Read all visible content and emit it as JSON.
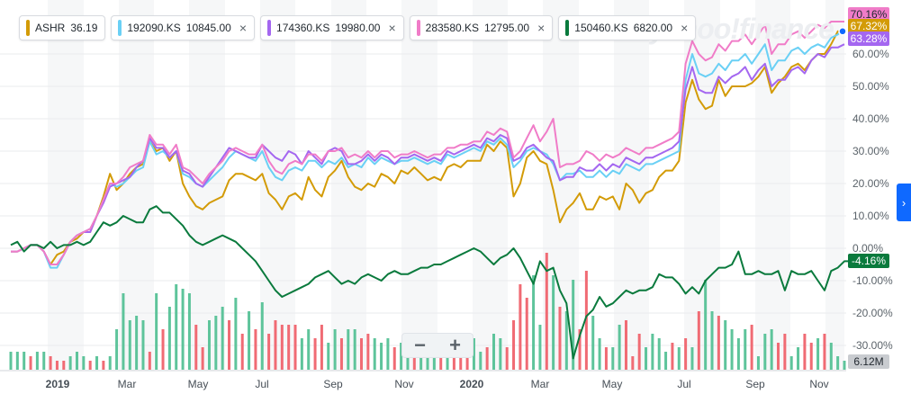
{
  "legend": [
    {
      "symbol": "ASHR",
      "value": "36.19",
      "color": "#d39b07",
      "closable": false
    },
    {
      "symbol": "192090.KS",
      "value": "10845.00",
      "color": "#6ad0f5",
      "closable": true
    },
    {
      "symbol": "174360.KS",
      "value": "19980.00",
      "color": "#a467f0",
      "closable": true
    },
    {
      "symbol": "283580.KS",
      "value": "12795.00",
      "color": "#f07cc8",
      "closable": true
    },
    {
      "symbol": "150460.KS",
      "value": "6820.00",
      "color": "#0a7a3d",
      "closable": true
    }
  ],
  "close_glyph": "×",
  "watermark": "yahoo!finance",
  "zoom": {
    "minus": "−",
    "plus": "+"
  },
  "side_arrow": "›",
  "chart_data": {
    "type": "line",
    "title": "",
    "x_axis_labels": [
      "2019",
      "Mar",
      "May",
      "Jul",
      "Sep",
      "Nov",
      "2020",
      "Mar",
      "May",
      "Jul",
      "Sep",
      "Nov"
    ],
    "y_axis": {
      "min": -35,
      "max": 75,
      "ticks": [
        60,
        50,
        40,
        30,
        20,
        10,
        0,
        -10,
        -20,
        -30
      ],
      "unit": "%"
    },
    "y_tick_labels": [
      "60.00%",
      "50.00%",
      "40.00%",
      "30.00%",
      "20.00%",
      "10.00%",
      "0.00%",
      "-10.00%",
      "-20.00%",
      "-30.00%"
    ],
    "series": [
      {
        "name": "ASHR",
        "color": "#d39b07",
        "last_label": "67.32%",
        "values": [
          -1,
          -1,
          0,
          1,
          1,
          -1,
          -5,
          -2,
          -1,
          2,
          3,
          5,
          5,
          10,
          16,
          23,
          18,
          20,
          23,
          25,
          26,
          33,
          30,
          31,
          27,
          30,
          20,
          16,
          13,
          12,
          14,
          15,
          16,
          21,
          23,
          23,
          22,
          21,
          23,
          17,
          15,
          12,
          16,
          17,
          15,
          22,
          18,
          16,
          22,
          24,
          27,
          22,
          19,
          18,
          20,
          19,
          23,
          22,
          20,
          24,
          23,
          25,
          23,
          21,
          22,
          21,
          25,
          26,
          25,
          27,
          27,
          27,
          32,
          30,
          33,
          31,
          16,
          20,
          28,
          30,
          27,
          26,
          18,
          8,
          12,
          14,
          17,
          12,
          12,
          16,
          15,
          16,
          12,
          20,
          18,
          14,
          17,
          18,
          22,
          24,
          24,
          27,
          45,
          52,
          46,
          43,
          44,
          52,
          47,
          50,
          50,
          50,
          51,
          53,
          56,
          48,
          51,
          53,
          56,
          57,
          55,
          58,
          60,
          60,
          63,
          67,
          67
        ]
      },
      {
        "name": "192090.KS",
        "color": "#6ad0f5",
        "last_label": "",
        "values": [
          -1,
          -1,
          0,
          1,
          1,
          -1,
          -6,
          -6,
          -2,
          2,
          4,
          5,
          6,
          10,
          15,
          20,
          19,
          20,
          22,
          24,
          25,
          33,
          29,
          30,
          28,
          30,
          23,
          22,
          20,
          19,
          21,
          23,
          25,
          28,
          30,
          29,
          28,
          27,
          30,
          25,
          22,
          21,
          24,
          25,
          24,
          27,
          27,
          25,
          27,
          26,
          28,
          25,
          26,
          25,
          28,
          26,
          28,
          27,
          26,
          27,
          27,
          28,
          27,
          26,
          27,
          26,
          29,
          28,
          29,
          30,
          31,
          30,
          33,
          32,
          34,
          32,
          25,
          27,
          30,
          31,
          30,
          29,
          26,
          21,
          23,
          23,
          24,
          22,
          22,
          24,
          22,
          24,
          23,
          26,
          25,
          24,
          26,
          26,
          27,
          28,
          29,
          30,
          52,
          60,
          54,
          53,
          54,
          57,
          55,
          58,
          58,
          60,
          57,
          60,
          63,
          55,
          58,
          58,
          61,
          62,
          60,
          62,
          63,
          62,
          65,
          66,
          68
        ]
      },
      {
        "name": "174360.KS",
        "color": "#a467f0",
        "last_label": "63.28%",
        "values": [
          -1,
          -1,
          0,
          1,
          1,
          -1,
          -5,
          -5,
          -2,
          2,
          4,
          5,
          5,
          10,
          14,
          19,
          20,
          21,
          22,
          25,
          27,
          34,
          31,
          31,
          28,
          30,
          24,
          23,
          20,
          19,
          22,
          25,
          28,
          31,
          30,
          29,
          28,
          28,
          32,
          30,
          28,
          27,
          30,
          29,
          26,
          30,
          28,
          26,
          30,
          31,
          30,
          26,
          26,
          27,
          29,
          27,
          29,
          28,
          26,
          28,
          28,
          29,
          28,
          27,
          28,
          27,
          30,
          29,
          30,
          31,
          32,
          31,
          34,
          33,
          35,
          34,
          27,
          28,
          31,
          32,
          30,
          28,
          27,
          21,
          22,
          22,
          25,
          24,
          24,
          26,
          24,
          26,
          25,
          28,
          27,
          26,
          28,
          28,
          29,
          30,
          31,
          33,
          49,
          56,
          49,
          48,
          48,
          53,
          51,
          53,
          54,
          56,
          52,
          55,
          57,
          50,
          52,
          52,
          55,
          56,
          54,
          58,
          60,
          59,
          62,
          62,
          63
        ]
      },
      {
        "name": "283580.KS",
        "color": "#f07cc8",
        "last_label": "70.16%",
        "values": [
          -1,
          -1,
          0,
          1,
          1,
          -1,
          -5,
          -5,
          -2,
          2,
          4,
          5,
          6,
          10,
          15,
          20,
          20,
          22,
          25,
          26,
          27,
          35,
          32,
          32,
          29,
          32,
          25,
          24,
          22,
          20,
          23,
          25,
          27,
          30,
          31,
          30,
          29,
          29,
          32,
          27,
          24,
          23,
          26,
          27,
          26,
          29,
          29,
          27,
          30,
          30,
          31,
          28,
          29,
          28,
          30,
          28,
          30,
          30,
          28,
          29,
          29,
          30,
          29,
          28,
          29,
          29,
          31,
          31,
          32,
          32,
          33,
          33,
          36,
          35,
          37,
          36,
          28,
          30,
          34,
          38,
          33,
          36,
          40,
          25,
          26,
          26,
          27,
          30,
          29,
          27,
          29,
          28,
          29,
          31,
          30,
          29,
          31,
          31,
          32,
          33,
          34,
          36,
          57,
          64,
          60,
          58,
          59,
          63,
          61,
          64,
          64,
          66,
          63,
          66,
          69,
          60,
          63,
          63,
          66,
          67,
          65,
          67,
          69,
          68,
          70,
          70,
          70
        ]
      },
      {
        "name": "150460.KS",
        "color": "#0a7a3d",
        "last_label": "-4.16%",
        "values": [
          1,
          2,
          -1,
          1,
          1,
          0,
          2,
          0,
          1,
          1,
          2,
          1,
          2,
          5,
          8,
          7,
          8,
          10,
          9,
          8,
          8,
          12,
          13,
          11,
          11,
          9,
          7,
          4,
          2,
          1,
          2,
          3,
          4,
          3,
          2,
          0,
          -2,
          -4,
          -7,
          -10,
          -13,
          -15,
          -14,
          -13,
          -12,
          -11,
          -9,
          -8,
          -7,
          -9,
          -11,
          -10,
          -11,
          -9,
          -8,
          -9,
          -10,
          -8,
          -7,
          -8,
          -8,
          -7,
          -6,
          -6,
          -5,
          -5,
          -4,
          -3,
          -2,
          -1,
          0,
          -1,
          -3,
          -5,
          -3,
          -2,
          0,
          -3,
          -7,
          -11,
          -4,
          -7,
          -6,
          -13,
          -17,
          -34,
          -27,
          -21,
          -19,
          -15,
          -18,
          -17,
          -15,
          -13,
          -14,
          -13,
          -13,
          -12,
          -8,
          -9,
          -9,
          -11,
          -14,
          -12,
          -14,
          -10,
          -8,
          -6,
          -6,
          -5,
          -1,
          -8,
          -8,
          -7,
          -8,
          -8,
          -7,
          -13,
          -7,
          -8,
          -8,
          -7,
          -10,
          -13,
          -7,
          -6,
          -4,
          -4
        ]
      },
      {
        "name": "Volume",
        "color": "#b0b0b0",
        "last_label": "6.12M",
        "values": []
      }
    ],
    "volume_bars": [
      4,
      4,
      4,
      3,
      4,
      4,
      3,
      2,
      2,
      3,
      4,
      3,
      2,
      3,
      2,
      3,
      9,
      17,
      11,
      12,
      11,
      4,
      17,
      9,
      14,
      19,
      18,
      17,
      10,
      5,
      11,
      12,
      14,
      11,
      16,
      8,
      13,
      9,
      15,
      8,
      11,
      10,
      10,
      10,
      7,
      9,
      7,
      10,
      6,
      9,
      7,
      9,
      9,
      7,
      8,
      7,
      6,
      7,
      5,
      6,
      6,
      4,
      5,
      6,
      7,
      6,
      7,
      5,
      7,
      7,
      7,
      4,
      5,
      8,
      7,
      5,
      11,
      19,
      16,
      21,
      10,
      26,
      21,
      14,
      13,
      20,
      9,
      22,
      12,
      7,
      5,
      5,
      10,
      11,
      3,
      8,
      5,
      8,
      7,
      4,
      6,
      5,
      7,
      5,
      13,
      20,
      13,
      12,
      11,
      9,
      7,
      9,
      10,
      3,
      8,
      9,
      6,
      8,
      3,
      5,
      8,
      6,
      7,
      8,
      6,
      3,
      2
    ],
    "volume_colors": [
      "g",
      "g",
      "g",
      "r",
      "g",
      "g",
      "r",
      "r",
      "r",
      "g",
      "g",
      "g",
      "r",
      "g",
      "r",
      "g",
      "g",
      "g",
      "g",
      "g",
      "g",
      "r",
      "g",
      "r",
      "g",
      "g",
      "g",
      "g",
      "r",
      "r",
      "g",
      "g",
      "g",
      "r",
      "g",
      "r",
      "g",
      "r",
      "g",
      "r",
      "r",
      "r",
      "r",
      "r",
      "g",
      "g",
      "r",
      "r",
      "g",
      "g",
      "r",
      "g",
      "g",
      "r",
      "r",
      "g",
      "g",
      "g",
      "r",
      "g",
      "g",
      "r",
      "g",
      "g",
      "g",
      "r",
      "g",
      "r",
      "r",
      "r",
      "g",
      "g",
      "r",
      "g",
      "g",
      "r",
      "r",
      "r",
      "r",
      "g",
      "g",
      "r",
      "g",
      "r",
      "g",
      "g",
      "r",
      "r",
      "g",
      "g",
      "r",
      "g",
      "g",
      "r",
      "r",
      "r",
      "g",
      "g",
      "g",
      "g",
      "r",
      "g",
      "r",
      "g",
      "r",
      "g",
      "g",
      "r",
      "g",
      "g",
      "g",
      "g",
      "r",
      "g",
      "g",
      "g",
      "r",
      "r",
      "g",
      "g",
      "r",
      "r",
      "g",
      "r",
      "g",
      "g"
    ],
    "volume_max_ratio": 3.5
  }
}
